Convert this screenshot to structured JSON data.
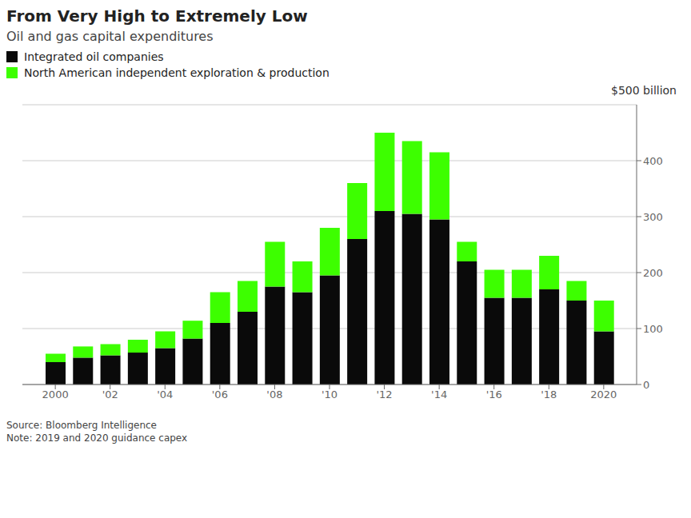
{
  "chart_data": {
    "type": "bar",
    "title": "From Very High to Extremely Low",
    "subtitle": "Oil and gas capital expenditures",
    "y_label": "$500 billion",
    "annotations": [
      "Source: Bloomberg Intelligence",
      "Note: 2019 and 2020 guidance capex"
    ],
    "x": [
      2000,
      2001,
      2002,
      2003,
      2004,
      2005,
      2006,
      2007,
      2008,
      2009,
      2010,
      2011,
      2012,
      2013,
      2014,
      2015,
      2016,
      2017,
      2018,
      2019,
      2020
    ],
    "series": [
      {
        "name": "Integrated oil companies",
        "color": "#0a0a0a",
        "values": [
          40,
          48,
          52,
          57,
          65,
          82,
          110,
          130,
          175,
          165,
          195,
          260,
          310,
          305,
          295,
          220,
          155,
          155,
          170,
          150,
          95
        ]
      },
      {
        "name": "North American independent exploration & production",
        "color": "#3dff00",
        "values": [
          15,
          20,
          20,
          23,
          30,
          32,
          55,
          55,
          80,
          55,
          85,
          100,
          140,
          130,
          120,
          35,
          50,
          50,
          60,
          35,
          55
        ]
      }
    ],
    "stacked": true,
    "xlim": [
      1998.8,
      2021.2
    ],
    "xticks": [
      {
        "value": 2000,
        "label": "2000"
      },
      {
        "value": 2002,
        "label": "'02"
      },
      {
        "value": 2004,
        "label": "'04"
      },
      {
        "value": 2006,
        "label": "'06"
      },
      {
        "value": 2008,
        "label": "'08"
      },
      {
        "value": 2010,
        "label": "'10"
      },
      {
        "value": 2012,
        "label": "'12"
      },
      {
        "value": 2014,
        "label": "'14"
      },
      {
        "value": 2016,
        "label": "'16"
      },
      {
        "value": 2018,
        "label": "'18"
      },
      {
        "value": 2020,
        "label": "2020"
      }
    ],
    "ylim": [
      0,
      500
    ],
    "yticks": [
      0,
      100,
      200,
      300,
      400
    ],
    "grid": true
  }
}
